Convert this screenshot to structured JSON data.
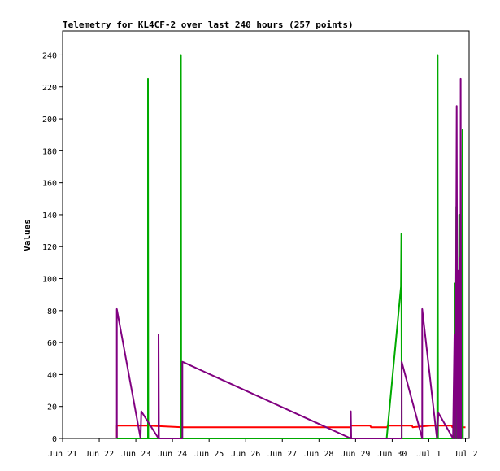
{
  "chart_data": {
    "type": "line",
    "title": "Telemetry for KL4CF-2 over last 240 hours (257 points)",
    "xlabel": "",
    "ylabel": "Values",
    "x_ticks": [
      "Jun 21",
      "Jun 22",
      "Jun 23",
      "Jun 24",
      "Jun 25",
      "Jun 26",
      "Jun 27",
      "Jun 28",
      "Jun 29",
      "Jun 30",
      "Jul 1",
      "Jul 2"
    ],
    "y_ticks": [
      0,
      20,
      40,
      60,
      80,
      100,
      120,
      140,
      160,
      180,
      200,
      220,
      240
    ],
    "xlim": [
      0,
      11.1
    ],
    "ylim": [
      0,
      255
    ],
    "grid": false,
    "legend": "none",
    "x_unit_note": "x values are days after Jun 21 00:00",
    "series": [
      {
        "name": "",
        "color": "#ff0000",
        "points": [
          [
            1.48,
            0
          ],
          [
            1.48,
            8
          ],
          [
            2.33,
            8
          ],
          [
            2.35,
            8
          ],
          [
            3.27,
            7
          ],
          [
            4,
            7
          ],
          [
            5,
            7
          ],
          [
            6,
            7
          ],
          [
            7,
            7
          ],
          [
            7.86,
            7
          ],
          [
            7.88,
            8
          ],
          [
            8.4,
            8
          ],
          [
            8.42,
            7
          ],
          [
            8.86,
            7
          ],
          [
            8.88,
            8
          ],
          [
            9.54,
            8
          ],
          [
            9.56,
            7
          ],
          [
            10.05,
            8
          ],
          [
            10.63,
            8
          ],
          [
            10.64,
            7
          ],
          [
            11,
            7
          ]
        ]
      },
      {
        "name": "",
        "color": "#00aa00",
        "points": [
          [
            1.48,
            0
          ],
          [
            2.33,
            0
          ],
          [
            2.33,
            225
          ],
          [
            2.34,
            0
          ],
          [
            3.23,
            0
          ],
          [
            3.23,
            240
          ],
          [
            3.24,
            0
          ],
          [
            8.85,
            0
          ],
          [
            9.24,
            95
          ],
          [
            9.25,
            128
          ],
          [
            9.26,
            0
          ],
          [
            10.23,
            0
          ],
          [
            10.24,
            240
          ],
          [
            10.25,
            0
          ],
          [
            10.7,
            0
          ],
          [
            10.72,
            97
          ],
          [
            10.73,
            0
          ],
          [
            10.75,
            145
          ],
          [
            10.76,
            0
          ],
          [
            10.82,
            0
          ],
          [
            10.83,
            140
          ],
          [
            10.84,
            0
          ],
          [
            10.9,
            0
          ],
          [
            10.92,
            193
          ],
          [
            10.93,
            0
          ]
        ]
      },
      {
        "name": "",
        "color": "#800080",
        "points": [
          [
            1.48,
            0
          ],
          [
            1.48,
            81
          ],
          [
            2.13,
            0
          ],
          [
            2.15,
            17
          ],
          [
            2.62,
            0
          ],
          [
            2.62,
            65
          ],
          [
            2.63,
            0
          ],
          [
            3.27,
            0
          ],
          [
            3.27,
            48
          ],
          [
            7.87,
            0
          ],
          [
            7.87,
            17
          ],
          [
            7.88,
            0
          ],
          [
            9.26,
            0
          ],
          [
            9.26,
            48
          ],
          [
            9.82,
            0
          ],
          [
            9.82,
            81
          ],
          [
            10.22,
            0
          ],
          [
            10.26,
            16
          ],
          [
            10.66,
            0
          ],
          [
            10.7,
            65
          ],
          [
            10.73,
            0
          ],
          [
            10.76,
            208
          ],
          [
            10.78,
            0
          ],
          [
            10.8,
            105
          ],
          [
            10.82,
            0
          ],
          [
            10.84,
            113
          ],
          [
            10.86,
            0
          ],
          [
            10.87,
            225
          ],
          [
            10.88,
            0
          ],
          [
            10.9,
            0
          ]
        ]
      }
    ]
  }
}
